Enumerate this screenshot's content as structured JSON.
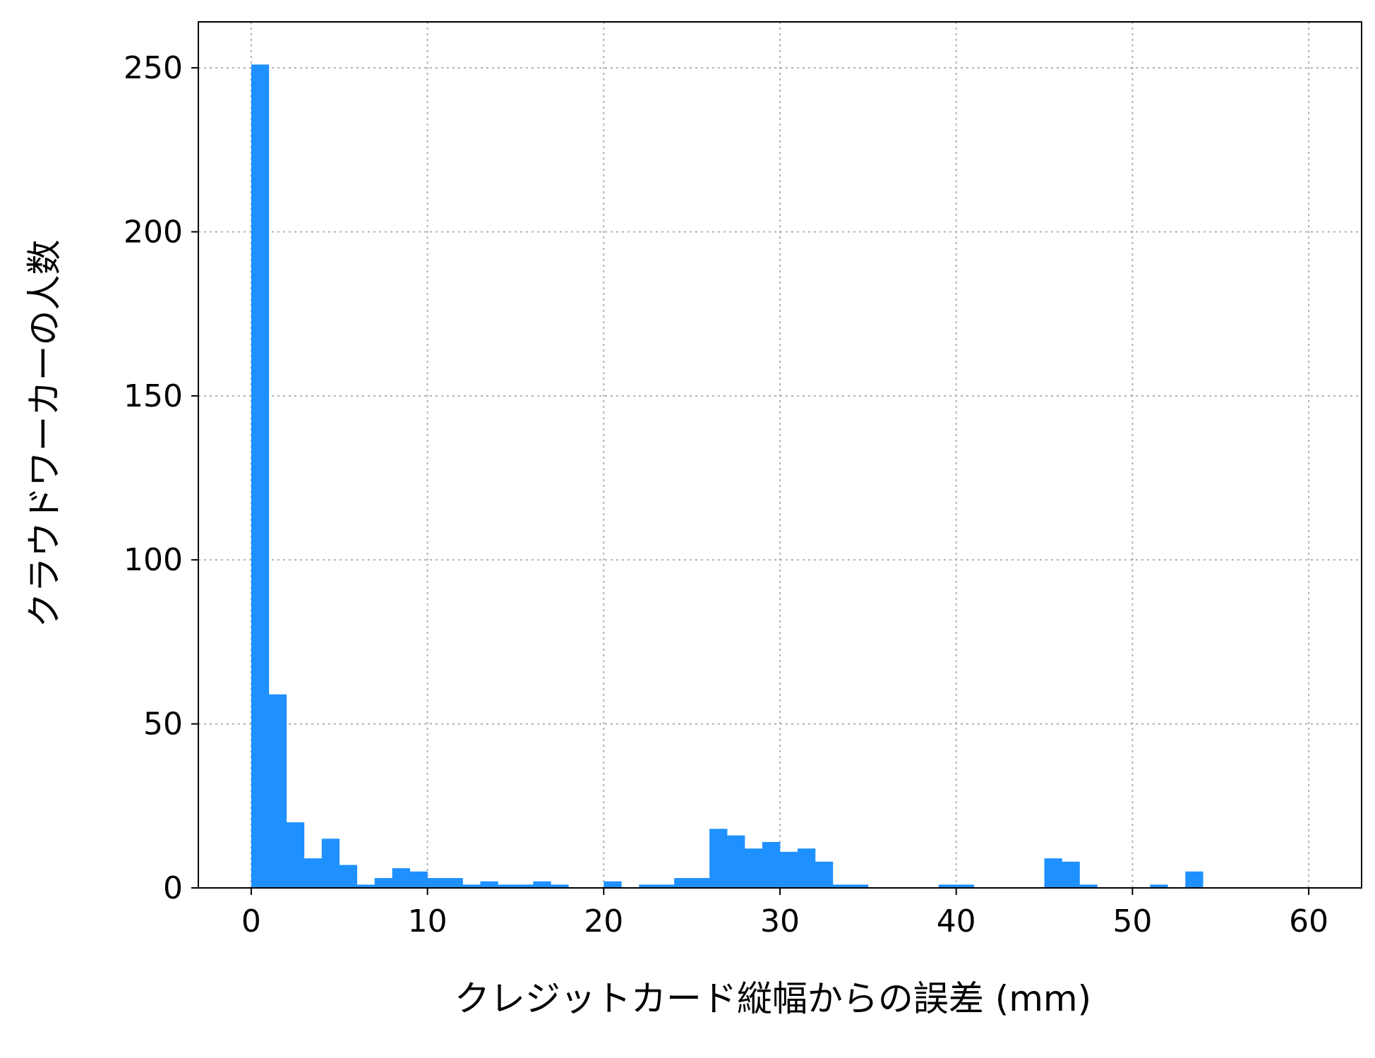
{
  "chart_data": {
    "type": "bar",
    "subtype": "histogram",
    "title": "",
    "xlabel": "クレジットカード縦幅からの誤差 (mm)",
    "ylabel": "クラウドワーカーの人数",
    "xlim": [
      -3,
      63
    ],
    "ylim": [
      0,
      264
    ],
    "xticks": [
      0,
      10,
      20,
      30,
      40,
      50,
      60
    ],
    "yticks": [
      0,
      50,
      100,
      150,
      200,
      250
    ],
    "xtick_labels": [
      "0",
      "10",
      "20",
      "30",
      "40",
      "50",
      "60"
    ],
    "ytick_labels": [
      "0",
      "50",
      "100",
      "150",
      "200",
      "250"
    ],
    "grid": true,
    "grid_style": "dotted",
    "bar_color": "#1e90ff",
    "bin_width": 1,
    "bin_start": 0,
    "values": [
      251,
      59,
      20,
      9,
      15,
      7,
      1,
      3,
      6,
      5,
      3,
      3,
      1,
      2,
      1,
      1,
      2,
      1,
      0,
      0,
      2,
      0,
      1,
      1,
      3,
      3,
      18,
      16,
      12,
      14,
      11,
      12,
      8,
      1,
      1,
      0,
      0,
      0,
      0,
      1,
      1,
      0,
      0,
      0,
      0,
      9,
      8,
      1,
      0,
      0,
      0,
      1,
      0,
      5
    ]
  }
}
